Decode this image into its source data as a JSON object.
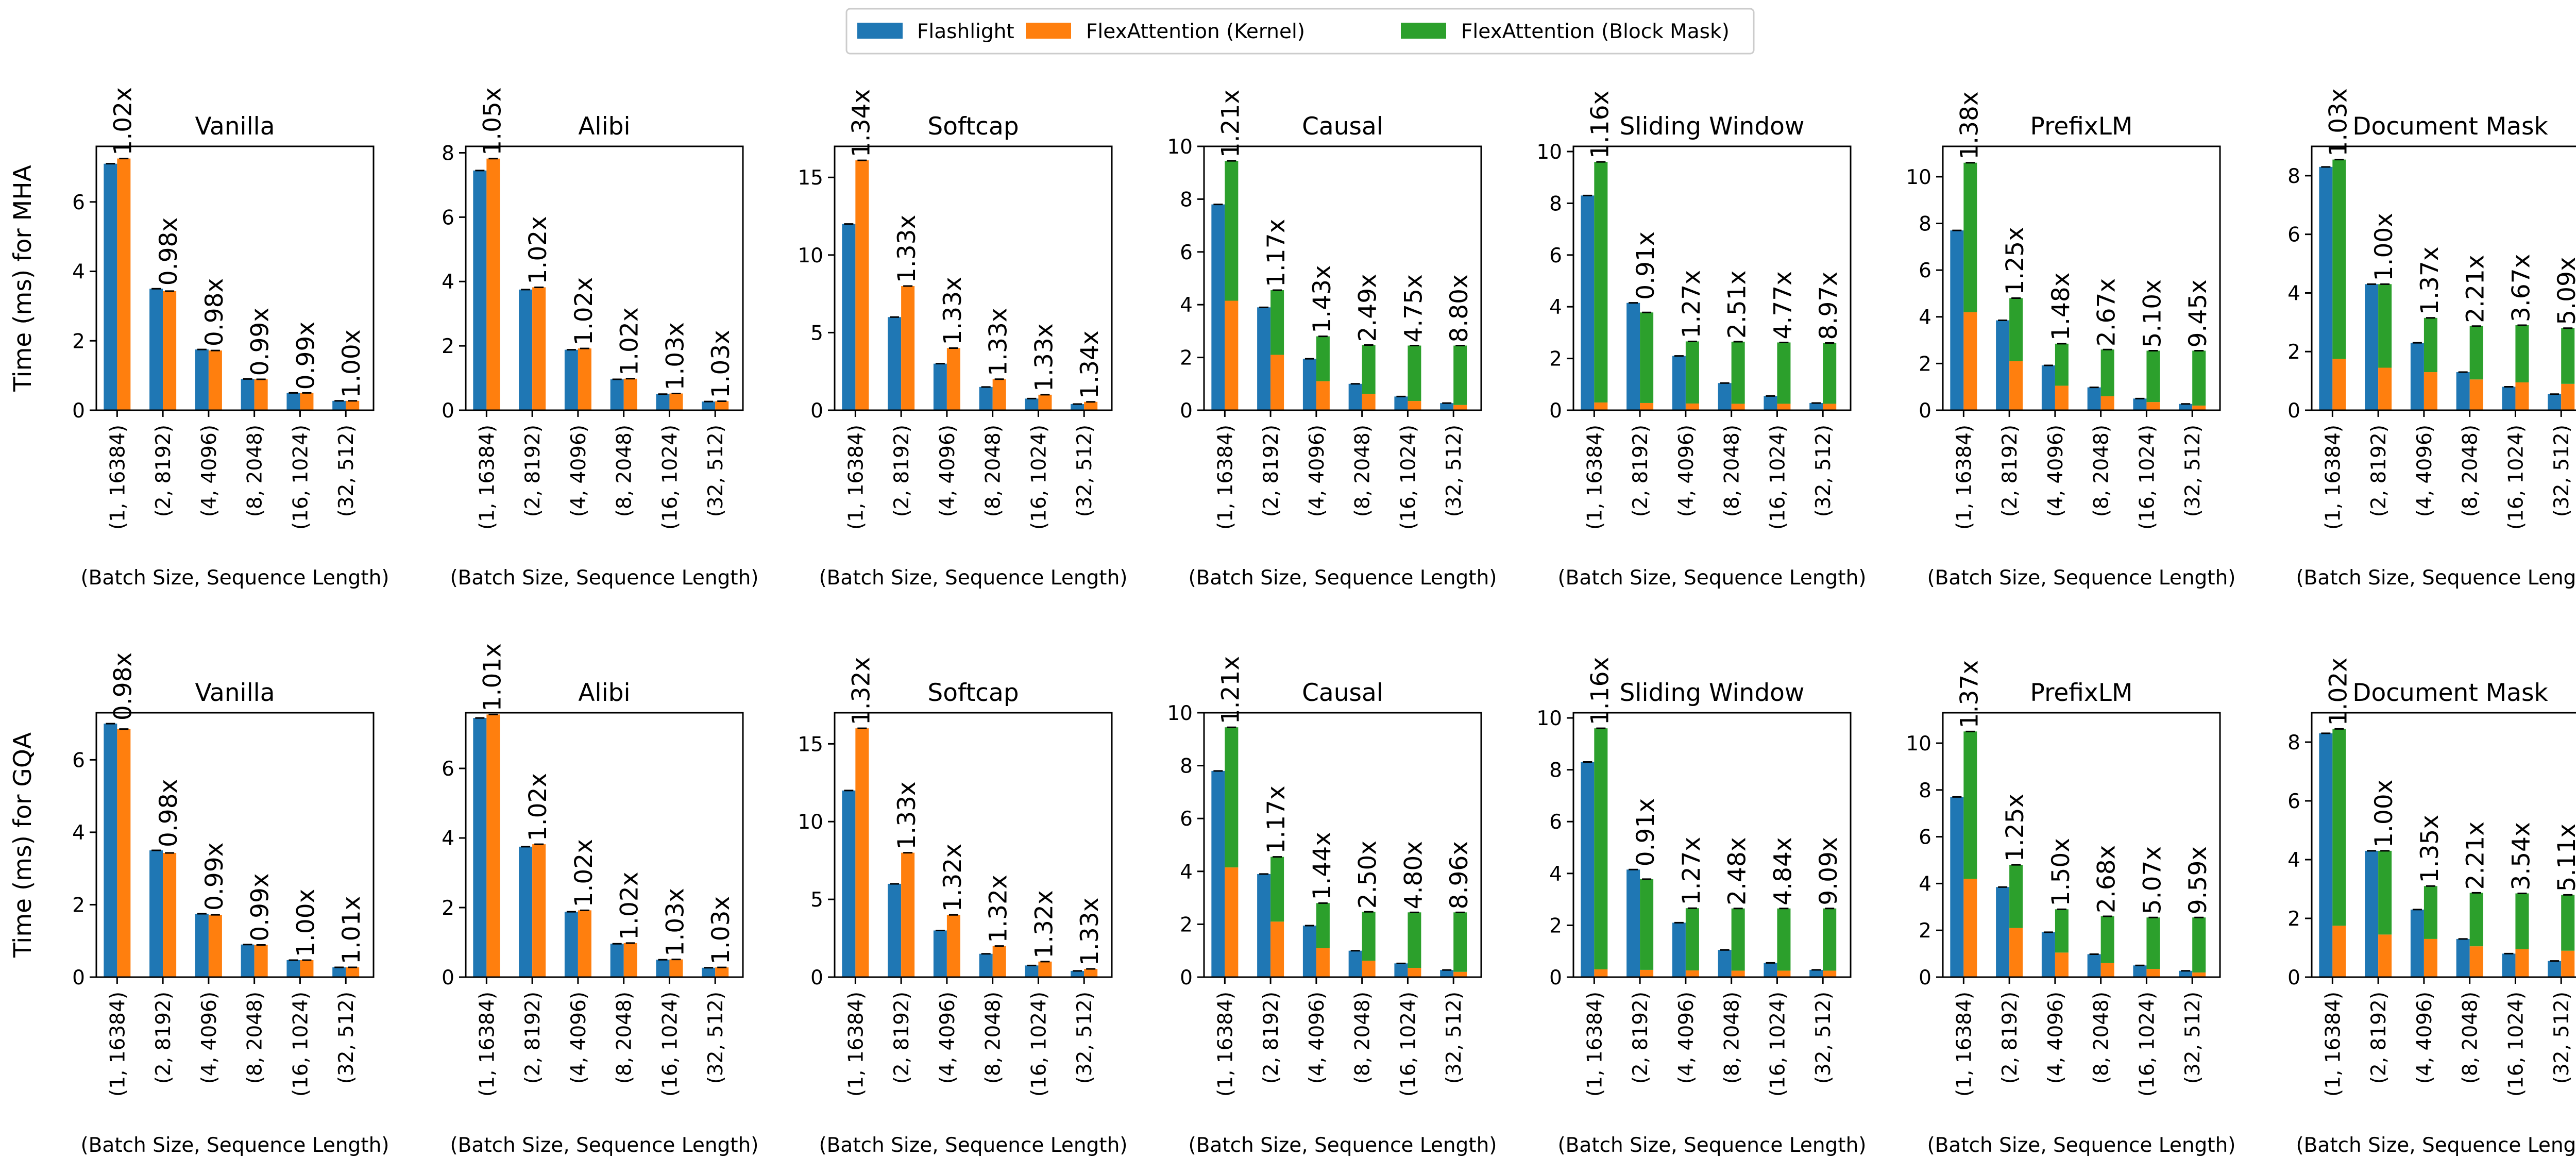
{
  "chart_data": {
    "type": "bar",
    "legend": {
      "placement": "top-center",
      "entries": [
        {
          "name": "Flashlight",
          "color": "#1f77b4"
        },
        {
          "name": "FlexAttention (Kernel)",
          "color": "#ff7f0e"
        },
        {
          "name": "FlexAttention (Block Mask)",
          "color": "#2ca02c"
        }
      ]
    },
    "categories": [
      "(1, 16384)",
      "(2, 8192)",
      "(4, 4096)",
      "(8, 2048)",
      "(16, 1024)",
      "(32, 512)"
    ],
    "xlabel": "(Batch Size, Sequence Length)",
    "rows": [
      {
        "ylabel": "Time (ms) for MHA",
        "panels": [
          {
            "title": "Vanilla",
            "ylim": [
              0,
              7.6
            ],
            "yticks": [
              0,
              2,
              4,
              6
            ],
            "flashlight": [
              7.1,
              3.5,
              1.75,
              0.9,
              0.5,
              0.27
            ],
            "kernel": [
              7.25,
              3.43,
              1.72,
              0.89,
              0.5,
              0.27
            ],
            "block_mask": [
              0,
              0,
              0,
              0,
              0,
              0
            ],
            "labels": [
              "1.02x",
              "0.98x",
              "0.98x",
              "0.99x",
              "0.99x",
              "1.00x"
            ]
          },
          {
            "title": "Alibi",
            "ylim": [
              0,
              8.2
            ],
            "yticks": [
              0,
              2,
              4,
              6,
              8
            ],
            "flashlight": [
              7.45,
              3.75,
              1.88,
              0.96,
              0.5,
              0.27
            ],
            "kernel": [
              7.82,
              3.82,
              1.92,
              0.98,
              0.52,
              0.28
            ],
            "block_mask": [
              0,
              0,
              0,
              0,
              0,
              0
            ],
            "labels": [
              "1.05x",
              "1.02x",
              "1.02x",
              "1.02x",
              "1.03x",
              "1.03x"
            ]
          },
          {
            "title": "Softcap",
            "ylim": [
              0,
              17
            ],
            "yticks": [
              0,
              5,
              10,
              15
            ],
            "flashlight": [
              12.0,
              6.0,
              3.0,
              1.5,
              0.75,
              0.4
            ],
            "kernel": [
              16.1,
              8.0,
              4.0,
              2.0,
              1.0,
              0.54
            ],
            "block_mask": [
              0,
              0,
              0,
              0,
              0,
              0
            ],
            "labels": [
              "1.34x",
              "1.33x",
              "1.33x",
              "1.33x",
              "1.33x",
              "1.34x"
            ]
          },
          {
            "title": "Causal",
            "ylim": [
              0,
              10
            ],
            "yticks": [
              0,
              2,
              4,
              6,
              8,
              10
            ],
            "flashlight": [
              7.8,
              3.9,
              1.95,
              1.0,
              0.52,
              0.27
            ],
            "kernel": [
              4.15,
              2.1,
              1.1,
              0.62,
              0.35,
              0.2
            ],
            "block_mask": [
              5.3,
              2.45,
              1.7,
              1.85,
              2.1,
              2.25
            ],
            "labels": [
              "1.21x",
              "1.17x",
              "1.43x",
              "2.49x",
              "4.75x",
              "8.80x"
            ]
          },
          {
            "title": "Sliding Window",
            "ylim": [
              0,
              10.2
            ],
            "yticks": [
              0,
              2,
              4,
              6,
              8,
              10
            ],
            "flashlight": [
              8.3,
              4.15,
              2.1,
              1.05,
              0.55,
              0.28
            ],
            "kernel": [
              0.3,
              0.28,
              0.26,
              0.25,
              0.25,
              0.25
            ],
            "block_mask": [
              9.3,
              3.5,
              2.4,
              2.4,
              2.37,
              2.35
            ],
            "labels": [
              "1.16x",
              "0.91x",
              "1.27x",
              "2.51x",
              "4.77x",
              "8.97x"
            ]
          },
          {
            "title": "PrefixLM",
            "ylim": [
              0,
              11.3
            ],
            "yticks": [
              0,
              2,
              4,
              6,
              8,
              10
            ],
            "flashlight": [
              7.7,
              3.85,
              1.92,
              0.98,
              0.5,
              0.27
            ],
            "kernel": [
              4.2,
              2.1,
              1.05,
              0.6,
              0.35,
              0.2
            ],
            "block_mask": [
              6.4,
              2.7,
              1.8,
              2.0,
              2.2,
              2.35
            ],
            "labels": [
              "1.38x",
              "1.25x",
              "1.48x",
              "2.67x",
              "5.10x",
              "9.45x"
            ]
          },
          {
            "title": "Document Mask",
            "ylim": [
              0,
              9
            ],
            "yticks": [
              0,
              2,
              4,
              6,
              8
            ],
            "flashlight": [
              8.3,
              4.3,
              2.3,
              1.3,
              0.8,
              0.55
            ],
            "kernel": [
              1.75,
              1.45,
              1.3,
              1.05,
              0.95,
              0.9
            ],
            "block_mask": [
              6.8,
              2.85,
              1.85,
              1.82,
              1.95,
              1.9
            ],
            "labels": [
              "1.03x",
              "1.00x",
              "1.37x",
              "2.21x",
              "3.67x",
              "5.09x"
            ]
          }
        ]
      },
      {
        "ylabel": "Time (ms) for GQA",
        "panels": [
          {
            "title": "Vanilla",
            "ylim": [
              0,
              7.3
            ],
            "yticks": [
              0,
              2,
              4,
              6
            ],
            "flashlight": [
              7.0,
              3.5,
              1.75,
              0.9,
              0.47,
              0.27
            ],
            "kernel": [
              6.85,
              3.43,
              1.72,
              0.89,
              0.47,
              0.27
            ],
            "block_mask": [
              0,
              0,
              0,
              0,
              0,
              0
            ],
            "labels": [
              "0.98x",
              "0.98x",
              "0.99x",
              "0.99x",
              "1.00x",
              "1.01x"
            ]
          },
          {
            "title": "Alibi",
            "ylim": [
              0,
              7.6
            ],
            "yticks": [
              0,
              2,
              4,
              6
            ],
            "flashlight": [
              7.45,
              3.75,
              1.88,
              0.96,
              0.5,
              0.27
            ],
            "kernel": [
              7.55,
              3.82,
              1.92,
              0.98,
              0.51,
              0.28
            ],
            "block_mask": [
              0,
              0,
              0,
              0,
              0,
              0
            ],
            "labels": [
              "1.01x",
              "1.02x",
              "1.02x",
              "1.02x",
              "1.03x",
              "1.03x"
            ]
          },
          {
            "title": "Softcap",
            "ylim": [
              0,
              17
            ],
            "yticks": [
              0,
              5,
              10,
              15
            ],
            "flashlight": [
              12.0,
              6.0,
              3.0,
              1.5,
              0.75,
              0.4
            ],
            "kernel": [
              16.0,
              8.0,
              4.0,
              2.0,
              1.0,
              0.53
            ],
            "block_mask": [
              0,
              0,
              0,
              0,
              0,
              0
            ],
            "labels": [
              "1.32x",
              "1.33x",
              "1.32x",
              "1.32x",
              "1.32x",
              "1.33x"
            ]
          },
          {
            "title": "Causal",
            "ylim": [
              0,
              10
            ],
            "yticks": [
              0,
              2,
              4,
              6,
              8,
              10
            ],
            "flashlight": [
              7.8,
              3.9,
              1.95,
              1.0,
              0.52,
              0.27
            ],
            "kernel": [
              4.15,
              2.1,
              1.1,
              0.62,
              0.35,
              0.2
            ],
            "block_mask": [
              5.3,
              2.45,
              1.7,
              1.85,
              2.1,
              2.25
            ],
            "labels": [
              "1.21x",
              "1.17x",
              "1.44x",
              "2.50x",
              "4.80x",
              "8.96x"
            ]
          },
          {
            "title": "Sliding Window",
            "ylim": [
              0,
              10.2
            ],
            "yticks": [
              0,
              2,
              4,
              6,
              8,
              10
            ],
            "flashlight": [
              8.3,
              4.15,
              2.1,
              1.05,
              0.55,
              0.28
            ],
            "kernel": [
              0.3,
              0.28,
              0.26,
              0.25,
              0.25,
              0.25
            ],
            "block_mask": [
              9.3,
              3.5,
              2.4,
              2.4,
              2.4,
              2.4
            ],
            "labels": [
              "1.16x",
              "0.91x",
              "1.27x",
              "2.48x",
              "4.84x",
              "9.09x"
            ]
          },
          {
            "title": "PrefixLM",
            "ylim": [
              0,
              11.3
            ],
            "yticks": [
              0,
              2,
              4,
              6,
              8,
              10
            ],
            "flashlight": [
              7.7,
              3.85,
              1.92,
              0.98,
              0.5,
              0.27
            ],
            "kernel": [
              4.2,
              2.1,
              1.05,
              0.6,
              0.35,
              0.2
            ],
            "block_mask": [
              6.3,
              2.7,
              1.85,
              2.0,
              2.2,
              2.35
            ],
            "labels": [
              "1.37x",
              "1.25x",
              "1.50x",
              "2.68x",
              "5.07x",
              "9.59x"
            ]
          },
          {
            "title": "Document Mask",
            "ylim": [
              0,
              9
            ],
            "yticks": [
              0,
              2,
              4,
              6,
              8
            ],
            "flashlight": [
              8.3,
              4.3,
              2.3,
              1.3,
              0.8,
              0.55
            ],
            "kernel": [
              1.75,
              1.45,
              1.3,
              1.05,
              0.95,
              0.9
            ],
            "block_mask": [
              6.7,
              2.85,
              1.8,
              1.82,
              1.9,
              1.9
            ],
            "labels": [
              "1.02x",
              "1.00x",
              "1.35x",
              "2.21x",
              "3.54x",
              "5.11x"
            ]
          }
        ]
      }
    ]
  }
}
